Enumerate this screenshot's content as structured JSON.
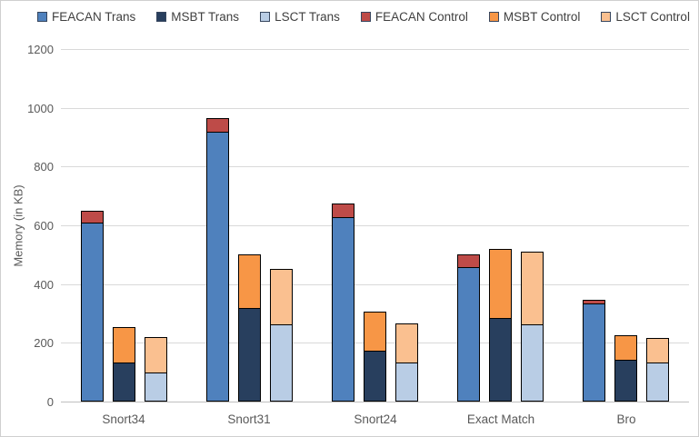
{
  "chart_data": {
    "type": "bar",
    "variant": "grouped-stacked",
    "title": "",
    "xlabel": "",
    "ylabel": "Memory (in KB)",
    "ylim": [
      0,
      1200
    ],
    "ytick_step": 200,
    "yticks": [
      0,
      200,
      400,
      600,
      800,
      1000,
      1200
    ],
    "grid": "horizontal",
    "legend_position": "top",
    "categories": [
      "Snort34",
      "Snort31",
      "Snort24",
      "Exact Match",
      "Bro"
    ],
    "groups": [
      {
        "name": "FEACAN",
        "segments": [
          {
            "label": "FEACAN Trans",
            "color": "#4F81BD",
            "values": [
              605,
              915,
              625,
              455,
              330
            ]
          },
          {
            "label": "FEACAN Control",
            "color": "#BE4B48",
            "values": [
              45,
              50,
              50,
              45,
              15
            ]
          }
        ]
      },
      {
        "name": "MSBT",
        "segments": [
          {
            "label": "MSBT Trans",
            "color": "#283F5E",
            "values": [
              130,
              315,
              170,
              280,
              140
            ]
          },
          {
            "label": "MSBT Control",
            "color": "#F79646",
            "values": [
              125,
              185,
              135,
              240,
              85
            ]
          }
        ]
      },
      {
        "name": "LSCT",
        "segments": [
          {
            "label": "LSCT Trans",
            "color": "#B9CDE5",
            "values": [
              95,
              260,
              130,
              260,
              130
            ]
          },
          {
            "label": "LSCT Control",
            "color": "#FAC090",
            "values": [
              125,
              190,
              135,
              250,
              85
            ]
          }
        ]
      }
    ],
    "legend": [
      {
        "label": "FEACAN Trans",
        "color": "#4F81BD"
      },
      {
        "label": "MSBT Trans",
        "color": "#283F5E"
      },
      {
        "label": "LSCT Trans",
        "color": "#B9CDE5"
      },
      {
        "label": "FEACAN Control",
        "color": "#BE4B48"
      },
      {
        "label": "MSBT Control",
        "color": "#F79646"
      },
      {
        "label": "LSCT Control",
        "color": "#FAC090"
      }
    ]
  }
}
